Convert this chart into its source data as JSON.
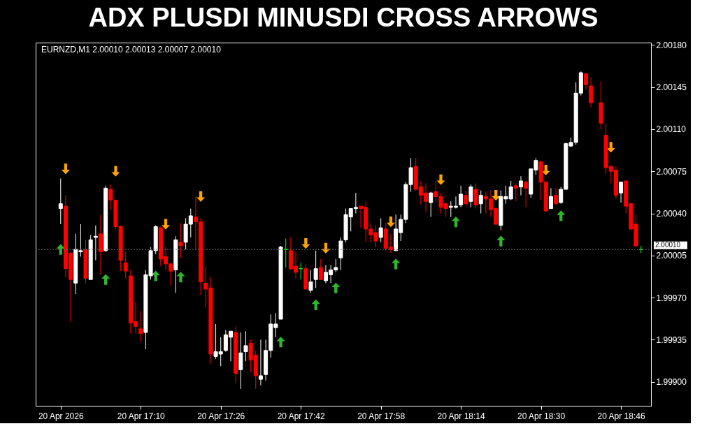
{
  "chart_data": {
    "type": "candlestick",
    "title": "ADX PLUSDI MINUSDI CROSS ARROWS",
    "subtitle": "EURNZD,M1  2.00010 2.00013 2.00007 2.00010",
    "x": [
      "2026-04-20T16:54",
      "2026-04-20T16:55",
      "2026-04-20T16:56",
      "2026-04-20T16:57",
      "2026-04-20T16:58",
      "2026-04-20T16:59",
      "2026-04-20T17:00",
      "2026-04-20T17:01",
      "2026-04-20T17:02",
      "2026-04-20T17:03",
      "2026-04-20T17:04",
      "2026-04-20T17:05",
      "2026-04-20T17:06",
      "2026-04-20T17:07",
      "2026-04-20T17:08",
      "2026-04-20T17:09",
      "2026-04-20T17:10",
      "2026-04-20T17:11",
      "2026-04-20T17:12",
      "2026-04-20T17:13",
      "2026-04-20T17:14",
      "2026-04-20T17:15",
      "2026-04-20T17:16",
      "2026-04-20T17:17",
      "2026-04-20T17:18",
      "2026-04-20T17:19",
      "2026-04-20T17:20",
      "2026-04-20T17:21",
      "2026-04-20T17:22",
      "2026-04-20T17:23",
      "2026-04-20T17:24",
      "2026-04-20T17:25",
      "2026-04-20T17:26",
      "2026-04-20T17:27",
      "2026-04-20T17:28",
      "2026-04-20T17:29",
      "2026-04-20T17:30",
      "2026-04-20T17:31",
      "2026-04-20T17:32",
      "2026-04-20T17:33",
      "2026-04-20T17:34",
      "2026-04-20T17:35",
      "2026-04-20T17:36",
      "2026-04-20T17:37",
      "2026-04-20T17:38",
      "2026-04-20T17:39",
      "2026-04-20T17:40",
      "2026-04-20T17:41",
      "2026-04-20T17:42",
      "2026-04-20T17:43",
      "2026-04-20T17:44",
      "2026-04-20T17:45",
      "2026-04-20T17:46",
      "2026-04-20T17:47",
      "2026-04-20T17:48",
      "2026-04-20T17:49",
      "2026-04-20T17:50",
      "2026-04-20T17:51",
      "2026-04-20T17:52",
      "2026-04-20T17:53",
      "2026-04-20T17:54",
      "2026-04-20T17:55",
      "2026-04-20T17:56",
      "2026-04-20T17:57",
      "2026-04-20T17:58",
      "2026-04-20T17:59",
      "2026-04-20T18:00",
      "2026-04-20T18:01",
      "2026-04-20T18:02",
      "2026-04-20T18:03",
      "2026-04-20T18:04",
      "2026-04-20T18:05",
      "2026-04-20T18:06",
      "2026-04-20T18:07",
      "2026-04-20T18:08",
      "2026-04-20T18:09",
      "2026-04-20T18:10",
      "2026-04-20T18:11",
      "2026-04-20T18:12",
      "2026-04-20T18:13",
      "2026-04-20T18:14",
      "2026-04-20T18:15",
      "2026-04-20T18:16",
      "2026-04-20T18:17",
      "2026-04-20T18:18",
      "2026-04-20T18:19",
      "2026-04-20T18:20",
      "2026-04-20T18:21",
      "2026-04-20T18:22",
      "2026-04-20T18:23",
      "2026-04-20T18:24",
      "2026-04-20T18:25",
      "2026-04-20T18:26",
      "2026-04-20T18:27",
      "2026-04-20T18:28",
      "2026-04-20T18:29",
      "2026-04-20T18:30",
      "2026-04-20T18:31",
      "2026-04-20T18:32",
      "2026-04-20T18:33",
      "2026-04-20T18:34",
      "2026-04-20T18:35",
      "2026-04-20T18:36",
      "2026-04-20T18:37",
      "2026-04-20T18:38",
      "2026-04-20T18:39",
      "2026-04-20T18:40",
      "2026-04-20T18:42",
      "2026-04-20T18:43",
      "2026-04-20T18:44",
      "2026-04-20T18:45",
      "2026-04-20T18:46",
      "2026-04-20T18:47",
      "2026-04-20T18:48",
      "2026-04-20T18:49",
      "2026-04-20T18:50"
    ],
    "ohlc": [
      [
        2.00044,
        2.00069,
        2.00031,
        2.00048
      ],
      [
        2.00046,
        2.00055,
        1.99987,
        1.99994
      ],
      [
        2.00007,
        2.00008,
        1.9995,
        1.99985
      ],
      [
        1.99982,
        2.00023,
        1.99973,
        2.0001
      ],
      [
        2.00008,
        2.00031,
        2.00004,
        2.00009
      ],
      [
        2.0001,
        2.00018,
        1.99982,
        1.99986
      ],
      [
        1.99985,
        2.00022,
        1.99985,
        2.00018
      ],
      [
        2.0002,
        2.0003,
        2.00001,
        2.00021
      ],
      [
        2.00023,
        2.00039,
        1.99989,
        2.00008
      ],
      [
        2.00009,
        2.00063,
        2.00008,
        2.00061
      ],
      [
        2.0006,
        2.00064,
        2.00043,
        2.00051
      ],
      [
        2.00051,
        2.00051,
        2.00027,
        2.00029
      ],
      [
        2.00029,
        2.0003,
        1.99992,
        2.00001
      ],
      [
        1.99999,
        2.00008,
        1.99986,
        1.99992
      ],
      [
        1.99988,
        1.99993,
        1.9994,
        1.99949
      ],
      [
        1.9995,
        1.99966,
        1.9994,
        1.99946
      ],
      [
        1.99944,
        1.99959,
        1.99933,
        1.9994
      ],
      [
        1.99941,
        1.99993,
        1.99927,
        1.99989
      ],
      [
        1.99988,
        2.00012,
        1.99985,
        2.00009
      ],
      [
        2.00009,
        2.0003,
        2.00006,
        2.00029
      ],
      [
        2.00028,
        2.00029,
        1.99996,
        2.00002
      ],
      [
        2.00004,
        2.00012,
        1.99993,
        1.99998
      ],
      [
        1.99998,
        1.99999,
        1.9998,
        1.99992
      ],
      [
        1.99993,
        2.00021,
        1.99974,
        2.00018
      ],
      [
        2.00016,
        2.00032,
        2.00003,
        2.00013
      ],
      [
        2.00016,
        2.00036,
        2.0001,
        2.00031
      ],
      [
        2.00031,
        2.00044,
        2.0002,
        2.00038
      ],
      [
        2.00037,
        2.00054,
        2.0001,
        2.00033
      ],
      [
        2.00033,
        2.00036,
        1.99972,
        1.99983
      ],
      [
        1.99982,
        1.99996,
        1.99962,
        1.99977
      ],
      [
        1.99978,
        1.99987,
        1.99915,
        1.99923
      ],
      [
        1.99921,
        1.99948,
        1.99919,
        1.99925
      ],
      [
        1.99923,
        1.99937,
        1.99913,
        1.99925
      ],
      [
        1.99926,
        1.99943,
        1.99925,
        1.99939
      ],
      [
        1.99937,
        1.99942,
        1.99917,
        1.99942
      ],
      [
        1.99941,
        1.99946,
        1.99899,
        1.99907
      ],
      [
        1.9991,
        1.99941,
        1.99894,
        1.99924
      ],
      [
        1.99925,
        1.99942,
        1.99917,
        1.9993
      ],
      [
        1.99932,
        1.99935,
        1.99908,
        1.99918
      ],
      [
        1.99922,
        1.99926,
        1.99894,
        1.99905
      ],
      [
        1.99902,
        1.99935,
        1.99897,
        1.99905
      ],
      [
        1.99906,
        1.99935,
        1.99901,
        1.99926
      ],
      [
        1.99926,
        1.99956,
        1.9992,
        1.99948
      ],
      [
        1.99945,
        1.99957,
        1.99937,
        1.99948
      ],
      [
        1.99952,
        2.00013,
        1.99952,
        2.00012
      ],
      [
        2.0001,
        2.00019,
        1.99995,
        2.0001
      ],
      [
        2.00009,
        2.0002,
        1.99993,
        1.99994
      ],
      [
        1.99996,
        2.00008,
        1.99986,
        1.99991
      ],
      [
        1.99994,
        1.99999,
        1.99985,
        1.99994
      ],
      [
        1.99994,
        1.99998,
        1.99977,
        1.99977
      ],
      [
        1.99976,
        1.99993,
        1.99974,
        1.99983
      ],
      [
        1.99985,
        2.00009,
        1.99978,
        1.99994
      ],
      [
        1.99995,
        2.00002,
        1.99985,
        1.99985
      ],
      [
        1.99984,
        1.99997,
        1.99982,
        1.99991
      ],
      [
        1.99989,
        1.99997,
        1.99982,
        1.99993
      ],
      [
        1.99993,
        2.00002,
        1.99991,
        1.99995
      ],
      [
        2.00003,
        2.0002,
        1.99993,
        2.00017
      ],
      [
        2.00018,
        2.00044,
        2.00016,
        2.00039
      ],
      [
        2.00037,
        2.00044,
        2.00025,
        2.00044
      ],
      [
        2.00044,
        2.00057,
        2.0004,
        2.00045
      ],
      [
        2.00046,
        2.00046,
        2.00028,
        2.00044
      ],
      [
        2.00045,
        2.0005,
        2.00016,
        2.00027
      ],
      [
        2.00027,
        2.00032,
        2.00016,
        2.00022
      ],
      [
        2.00024,
        2.0003,
        2.00012,
        2.00017
      ],
      [
        2.0002,
        2.00036,
        2.00016,
        2.00028
      ],
      [
        2.00027,
        2.00032,
        2.00009,
        2.00011
      ],
      [
        2.00012,
        2.00023,
        2.00007,
        2.0001
      ],
      [
        2.00009,
        2.00039,
        2.00009,
        2.00027
      ],
      [
        2.00024,
        2.00039,
        2.00017,
        2.00035
      ],
      [
        2.00035,
        2.00066,
        2.00032,
        2.00064
      ],
      [
        2.00064,
        2.00086,
        2.00058,
        2.00078
      ],
      [
        2.00079,
        2.00086,
        2.00059,
        2.0006
      ],
      [
        2.00062,
        2.00067,
        2.00047,
        2.00055
      ],
      [
        2.00057,
        2.00065,
        2.00041,
        2.0005
      ],
      [
        2.00049,
        2.00058,
        2.00037,
        2.00057
      ],
      [
        2.00058,
        2.00067,
        2.0005,
        2.00054
      ],
      [
        2.00054,
        2.00057,
        2.0004,
        2.00045
      ],
      [
        2.00048,
        2.00049,
        2.00037,
        2.00044
      ],
      [
        2.00045,
        2.0005,
        2.00037,
        2.00046
      ],
      [
        2.00045,
        2.00054,
        2.00044,
        2.00046
      ],
      [
        2.00047,
        2.00063,
        2.00045,
        2.00056
      ],
      [
        2.00055,
        2.00059,
        2.00046,
        2.00048
      ],
      [
        2.0005,
        2.00064,
        2.00045,
        2.00062
      ],
      [
        2.0006,
        2.00065,
        2.00044,
        2.00047
      ],
      [
        2.00048,
        2.00059,
        2.0004,
        2.00055
      ],
      [
        2.00054,
        2.00058,
        2.0004,
        2.00052
      ],
      [
        2.00052,
        2.00059,
        2.00037,
        2.00043
      ],
      [
        2.00044,
        2.00045,
        2.0003,
        2.00031
      ],
      [
        2.0003,
        2.00059,
        2.00026,
        2.00054
      ],
      [
        2.00052,
        2.00063,
        2.00048,
        2.00054
      ],
      [
        2.00052,
        2.00067,
        2.00051,
        2.00062
      ],
      [
        2.00063,
        2.00065,
        2.0005,
        2.00061
      ],
      [
        2.00062,
        2.00071,
        2.00055,
        2.00067
      ],
      [
        2.00066,
        2.00067,
        2.00045,
        2.00061
      ],
      [
        2.00056,
        2.00077,
        2.00053,
        2.00077
      ],
      [
        2.00076,
        2.00086,
        2.00072,
        2.00084
      ],
      [
        2.00083,
        2.00083,
        2.00051,
        2.00066
      ],
      [
        2.00066,
        2.00066,
        2.00041,
        2.00042
      ],
      [
        2.00044,
        2.00061,
        2.00044,
        2.00054
      ],
      [
        2.00055,
        2.00061,
        2.00047,
        2.00048
      ],
      [
        2.00049,
        2.00062,
        2.00048,
        2.0006
      ],
      [
        2.0006,
        2.00099,
        2.0006,
        2.00098
      ],
      [
        2.00096,
        2.00103,
        2.00095,
        2.00099
      ],
      [
        2.00099,
        2.00149,
        2.00097,
        2.0014
      ],
      [
        2.0014,
        2.00158,
        2.00138,
        2.00157
      ],
      [
        2.00156,
        2.00157,
        2.00143,
        2.00147
      ],
      [
        2.00146,
        2.00153,
        2.00128,
        2.00132
      ],
      [
        2.00132,
        2.0015,
        2.0011,
        2.00115
      ],
      [
        2.00105,
        2.00115,
        2.00073,
        2.00078
      ],
      [
        2.00079,
        2.0008,
        2.00065,
        2.00075
      ],
      [
        2.00076,
        2.00079,
        2.00052,
        2.00055
      ],
      [
        2.00057,
        2.00066,
        2.00049,
        2.00066
      ],
      [
        2.00067,
        2.00067,
        2.0004,
        2.00046
      ],
      [
        2.00048,
        2.00048,
        2.00026,
        2.00027
      ],
      [
        2.00031,
        2.00039,
        2.00012,
        2.00013
      ],
      [
        2.0001,
        2.00013,
        2.00007,
        2.0001
      ]
    ],
    "colors": [
      "#ffffff",
      "#ff0000",
      "#ff0000",
      "#ffffff",
      "#ffffff",
      "#ff0000",
      "#ffffff",
      "#ffffff",
      "#ff0000",
      "#ffffff",
      "#ff0000",
      "#ff0000",
      "#ff0000",
      "#ff0000",
      "#ff0000",
      "#ff0000",
      "#ff0000",
      "#ffffff",
      "#ffffff",
      "#ffffff",
      "#ff0000",
      "#ff0000",
      "#ff0000",
      "#ffffff",
      "#ff0000",
      "#ffffff",
      "#ffffff",
      "#ff0000",
      "#ff0000",
      "#ff0000",
      "#ff0000",
      "#ffffff",
      "#ffffff",
      "#ffffff",
      "#ffffff",
      "#ff0000",
      "#ffffff",
      "#ffffff",
      "#ff0000",
      "#ff0000",
      "#ffffff",
      "#ffffff",
      "#ffffff",
      "#ffffff",
      "#ffffff",
      "#00ff00",
      "#ff0000",
      "#ff0000",
      "#00ff00",
      "#ff0000",
      "#ffffff",
      "#ffffff",
      "#ff0000",
      "#ffffff",
      "#ffffff",
      "#ffffff",
      "#ffffff",
      "#ffffff",
      "#ffffff",
      "#ffffff",
      "#ff0000",
      "#ff0000",
      "#ff0000",
      "#ff0000",
      "#ffffff",
      "#ff0000",
      "#ff0000",
      "#ffffff",
      "#ffffff",
      "#ffffff",
      "#ffffff",
      "#ff0000",
      "#ff0000",
      "#ff0000",
      "#ffffff",
      "#ff0000",
      "#ff0000",
      "#ff0000",
      "#ffffff",
      "#ffffff",
      "#ffffff",
      "#ff0000",
      "#ffffff",
      "#ff0000",
      "#ffffff",
      "#ff0000",
      "#ff0000",
      "#ff0000",
      "#ffffff",
      "#ffffff",
      "#ffffff",
      "#ff0000",
      "#ffffff",
      "#ff0000",
      "#ffffff",
      "#ffffff",
      "#ff0000",
      "#ff0000",
      "#ffffff",
      "#ff0000",
      "#ffffff",
      "#ffffff",
      "#ffffff",
      "#ffffff",
      "#ffffff",
      "#ff0000",
      "#ff0000",
      "#ff0000",
      "#ff0000",
      "#ff0000",
      "#ff0000",
      "#ffffff",
      "#ff0000",
      "#ff0000",
      "#ff0000",
      "#00ff00"
    ],
    "series": [
      {
        "type": "scatter",
        "color": "#ffa500",
        "marker": "triangle",
        "x": [
          "2026-04-20T16:55",
          "2026-04-20T17:05",
          "2026-04-20T17:15",
          "2026-04-20T17:22",
          "2026-04-20T17:43",
          "2026-04-20T17:47",
          "2026-04-20T18:00",
          "2026-04-20T18:10",
          "2026-04-20T18:21",
          "2026-04-20T18:31",
          "2026-04-20T18:44"
        ],
        "values": [
          2.00077,
          2.00075,
          2.00031,
          2.00054,
          2.00015,
          2.00011,
          2.00033,
          2.00068,
          2.00055,
          2.00076,
          2.00095
        ]
      },
      {
        "type": "scatter",
        "color": "#2db82d",
        "marker": "triangle",
        "x": [
          "2026-04-20T16:54",
          "2026-04-20T17:03",
          "2026-04-20T17:13",
          "2026-04-20T17:18",
          "2026-04-20T17:38",
          "2026-04-20T17:45",
          "2026-04-20T17:49",
          "2026-04-20T18:01",
          "2026-04-20T18:13",
          "2026-04-20T18:22",
          "2026-04-20T18:34"
        ],
        "values": [
          2.0001,
          1.99985,
          1.99988,
          1.99987,
          1.99933,
          1.99964,
          1.99978,
          1.99998,
          2.00033,
          2.00017,
          2.00038
        ]
      }
    ],
    "xlim": [
      "2026-04-20T16:49",
      "2026-04-20T18:52"
    ],
    "xticks": [
      {
        "value": "2026-04-20T16:54",
        "label": "20 Apr 2026"
      },
      {
        "value": "2026-04-20T17:10",
        "label": "20 Apr 17:10"
      },
      {
        "value": "2026-04-20T17:26",
        "label": "20 Apr 17:26"
      },
      {
        "value": "2026-04-20T17:42",
        "label": "20 Apr 17:42"
      },
      {
        "value": "2026-04-20T17:58",
        "label": "20 Apr 17:58"
      },
      {
        "value": "2026-04-20T18:14",
        "label": "20 Apr 18:14"
      },
      {
        "value": "2026-04-20T18:30",
        "label": "20 Apr 18:30"
      },
      {
        "value": "2026-04-20T18:46",
        "label": "20 Apr 18:46"
      }
    ],
    "ylim": [
      1.9988,
      2.00182
    ],
    "yticks": [
      {
        "value": 1.999,
        "label": "1.99900"
      },
      1.99935,
      {
        "value": 1.9997,
        "label": "1.99970"
      },
      2.00005,
      {
        "value": 2.0004,
        "label": "2.00040"
      },
      2.00075,
      {
        "value": 2.0011,
        "label": "2.00110"
      },
      2.00145,
      {
        "value": 2.0018,
        "label": "2.00180"
      }
    ],
    "ref_lines": [
      {
        "axis": "y",
        "value": 2.0001,
        "label": "2.00010",
        "color": "#707070",
        "line_style": "dotted"
      }
    ]
  }
}
